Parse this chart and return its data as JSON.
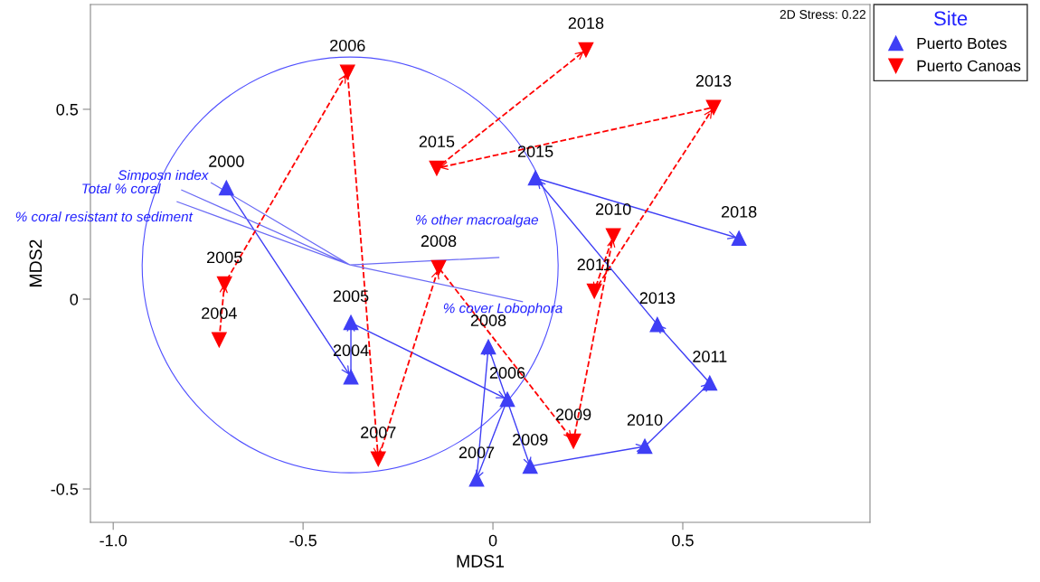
{
  "chart_data": {
    "type": "line",
    "xlabel": "MDS1",
    "ylabel": "MDS2",
    "legend_title": "Site",
    "legend": "top right",
    "grid": false,
    "xlim": [
      -1.06,
      0.993
    ],
    "ylim": [
      -0.588,
      0.776
    ],
    "xticks": [
      {
        "value": -1.0,
        "label": "-1.0"
      },
      {
        "value": -0.5,
        "label": "-0.5"
      },
      0,
      0.5
    ],
    "yticks": [
      {
        "value": -0.5,
        "label": "-0.5"
      },
      0,
      0.5
    ],
    "series": [
      {
        "name": "Puerto Botes",
        "marker": "triangle",
        "line_style": "solid",
        "color": "#3f3ff5",
        "x": [
          -0.702,
          -0.374,
          -0.374,
          0.038,
          -0.043,
          -0.012,
          0.098,
          0.4,
          0.571,
          0.433,
          0.112,
          0.648
        ],
        "values": [
          0.293,
          -0.205,
          -0.062,
          -0.264,
          -0.474,
          -0.126,
          -0.44,
          -0.388,
          -0.221,
          -0.067,
          0.319,
          0.16
        ]
      },
      {
        "name": "Puerto Canoas",
        "marker": "triangle_down",
        "line_style": "dashed",
        "color": "#ff0000",
        "x": [
          -0.721,
          -0.707,
          -0.383,
          -0.302,
          -0.143,
          0.212,
          0.317,
          0.267,
          0.581,
          -0.148,
          0.245
        ],
        "values": [
          -0.107,
          0.04,
          0.598,
          -0.421,
          0.083,
          -0.374,
          0.167,
          0.021,
          0.505,
          0.345,
          0.657
        ]
      },
      {
        "marker": "none",
        "line_style": "solid",
        "color": "#6a6af5",
        "x": [
          -0.376,
          -0.743,
          null,
          -0.376,
          -0.821,
          null,
          -0.376,
          -0.833,
          null,
          -0.376,
          0.017,
          null,
          -0.376,
          0.079
        ],
        "values": [
          0.09,
          0.307,
          null,
          0.09,
          0.288,
          null,
          0.09,
          0.257,
          null,
          0.09,
          0.11,
          null,
          0.09,
          -0.007
        ]
      }
    ],
    "annotations": [
      "2D Stress: 0.22",
      {
        "text": "2000",
        "x": -0.702,
        "y": 0.293
      },
      {
        "text": "2004",
        "x": -0.374,
        "y": -0.205
      },
      {
        "text": "2005",
        "x": -0.374,
        "y": -0.062
      },
      {
        "text": "2006",
        "x": 0.038,
        "y": -0.264
      },
      {
        "text": "2007",
        "x": -0.043,
        "y": -0.474
      },
      {
        "text": "2008",
        "x": -0.012,
        "y": -0.126
      },
      {
        "text": "2009",
        "x": 0.098,
        "y": -0.44
      },
      {
        "text": "2010",
        "x": 0.4,
        "y": -0.388
      },
      {
        "text": "2011",
        "x": 0.571,
        "y": -0.221
      },
      {
        "text": "2013",
        "x": 0.433,
        "y": -0.067
      },
      {
        "text": "2015",
        "x": 0.112,
        "y": 0.319
      },
      {
        "text": "2018",
        "x": 0.648,
        "y": 0.16
      },
      {
        "text": "2004",
        "x": -0.721,
        "y": -0.107
      },
      {
        "text": "2005",
        "x": -0.707,
        "y": 0.04
      },
      {
        "text": "2006",
        "x": -0.383,
        "y": 0.598
      },
      {
        "text": "2007",
        "x": -0.302,
        "y": -0.421
      },
      {
        "text": "2008",
        "x": -0.143,
        "y": 0.083
      },
      {
        "text": "2009",
        "x": 0.212,
        "y": -0.374
      },
      {
        "text": "2010",
        "x": 0.317,
        "y": 0.167
      },
      {
        "text": "2011",
        "x": 0.267,
        "y": 0.021
      },
      {
        "text": "2013",
        "x": 0.581,
        "y": 0.505
      },
      {
        "text": "2015",
        "x": -0.148,
        "y": 0.345
      },
      {
        "text": "2018",
        "x": 0.245,
        "y": 0.657
      },
      {
        "text": "Simposn index",
        "x": -0.743,
        "y": 0.307
      },
      {
        "text": "Total % coral",
        "x": -0.821,
        "y": 0.288
      },
      {
        "text": "% coral resistant to sediment",
        "x": -0.833,
        "y": 0.257
      },
      {
        "text": "% other macroalgae",
        "x": 0.017,
        "y": 0.11
      },
      {
        "text": "% cover Lobophora",
        "x": 0.079,
        "y": -0.007
      }
    ]
  }
}
